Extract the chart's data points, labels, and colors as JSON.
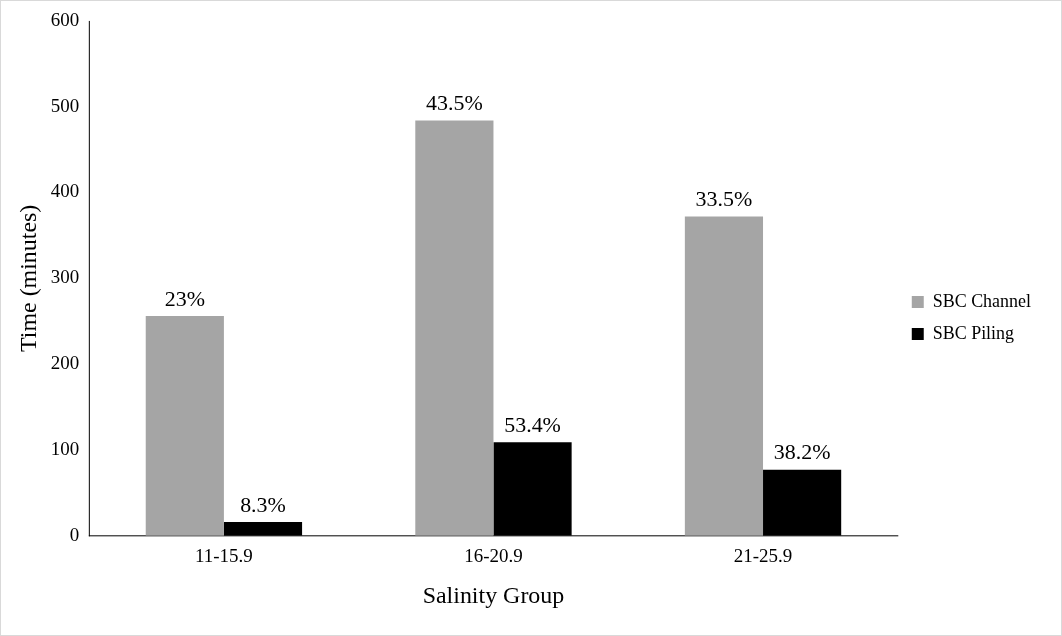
{
  "chart_data": {
    "type": "bar",
    "xlabel": "Salinity Group",
    "ylabel": "Time (minutes)",
    "categories": [
      "11-15.9",
      "16-20.9",
      "21-25.9"
    ],
    "series": [
      {
        "name": "SBC Channel",
        "color": "#a5a5a5",
        "values": [
          256,
          484,
          372
        ]
      },
      {
        "name": "SBC Piling",
        "color": "#000000",
        "values": [
          16,
          109,
          77
        ]
      }
    ],
    "annotations": [
      {
        "text": "23%",
        "x": "11-15.9",
        "y": 256
      },
      {
        "text": "43.5%",
        "x": "16-20.9",
        "y": 484
      },
      {
        "text": "33.5%",
        "x": "21-25.9",
        "y": 372
      },
      {
        "text": "8.3%",
        "x": "11-15.9",
        "y": 16
      },
      {
        "text": "53.4%",
        "x": "16-20.9",
        "y": 109
      },
      {
        "text": "38.2%",
        "x": "21-25.9",
        "y": 77
      }
    ],
    "ylim": [
      0,
      600
    ],
    "yticks": [
      0,
      100,
      200,
      300,
      400,
      500,
      600
    ],
    "grid": false,
    "legend": "right"
  }
}
